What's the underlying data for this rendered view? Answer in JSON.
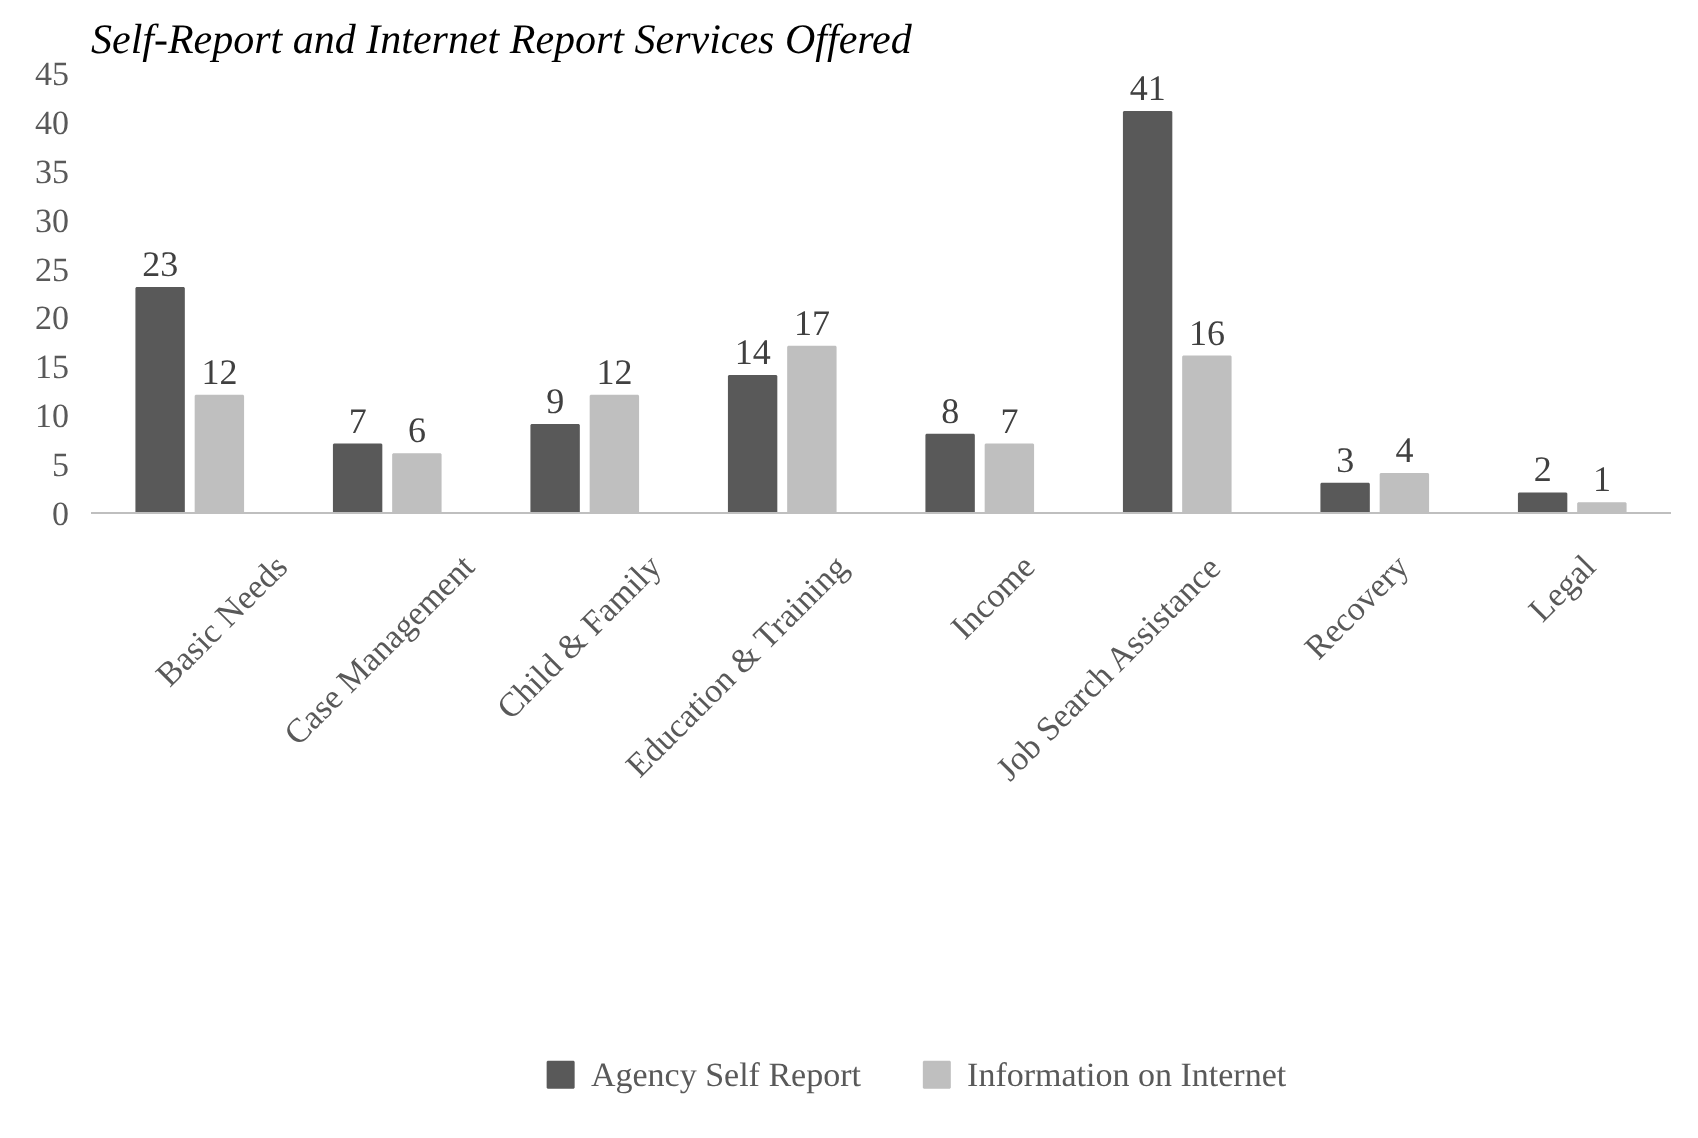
{
  "chart_data": {
    "type": "bar",
    "title": "Self-Report and Internet Report Services Offered",
    "categories": [
      "Basic Needs",
      "Case Management",
      "Child & Family",
      "Education & Training",
      "Income",
      "Job Search Assistance",
      "Recovery",
      "Legal"
    ],
    "series": [
      {
        "name": "Agency Self Report",
        "color": "#595959",
        "values": [
          23,
          7,
          9,
          14,
          8,
          41,
          3,
          2
        ]
      },
      {
        "name": "Information on Internet",
        "color": "#bfbfbf",
        "values": [
          12,
          6,
          12,
          17,
          7,
          16,
          4,
          1
        ]
      }
    ],
    "ylim": [
      0,
      45
    ],
    "yticks": [
      0,
      5,
      10,
      15,
      20,
      25,
      30,
      35,
      40,
      45
    ],
    "grid": false,
    "legend": "bottom",
    "data_labels": true
  }
}
